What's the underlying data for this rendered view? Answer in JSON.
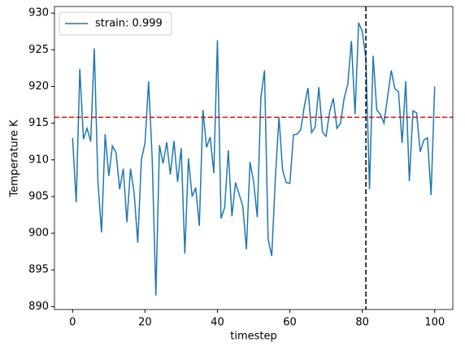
{
  "chart_data": {
    "type": "line",
    "xlabel": "timestep",
    "ylabel": "Temperature K",
    "x": [
      0,
      1,
      2,
      3,
      4,
      5,
      6,
      7,
      8,
      9,
      10,
      11,
      12,
      13,
      14,
      15,
      16,
      17,
      18,
      19,
      20,
      21,
      22,
      23,
      24,
      25,
      26,
      27,
      28,
      29,
      30,
      31,
      32,
      33,
      34,
      35,
      36,
      37,
      38,
      39,
      40,
      41,
      42,
      43,
      44,
      45,
      46,
      47,
      48,
      49,
      50,
      51,
      52,
      53,
      54,
      55,
      56,
      57,
      58,
      59,
      60,
      61,
      62,
      63,
      64,
      65,
      66,
      67,
      68,
      69,
      70,
      71,
      72,
      73,
      74,
      75,
      76,
      77,
      78,
      79,
      80,
      81,
      82,
      83,
      84,
      85,
      86,
      87,
      88,
      89,
      90,
      91,
      92,
      93,
      94,
      95,
      96,
      97,
      98,
      99,
      100
    ],
    "series": [
      {
        "name": "strain: 0.999",
        "color": "#1f77b4",
        "values": [
          913,
          904.2,
          922.4,
          912.8,
          914.3,
          912.5,
          925.2,
          907,
          900.1,
          913.5,
          907.8,
          911.9,
          911,
          906,
          908.8,
          901.5,
          908.8,
          905.5,
          898.7,
          910,
          912.3,
          920.7,
          910,
          891.5,
          912,
          909.5,
          912.4,
          908,
          912.6,
          907,
          911.6,
          897.2,
          910.2,
          905,
          906.2,
          901,
          916.8,
          911.7,
          913.1,
          908.2,
          926.3,
          902,
          903.5,
          911.3,
          902.3,
          906.9,
          905.3,
          903.7,
          897.8,
          909.7,
          907,
          902.2,
          918.5,
          922.2,
          899.2,
          896.9,
          907.5,
          915.8,
          908.6,
          906.9,
          906.8,
          913.4,
          913.5,
          914.1,
          917.3,
          919.8,
          913.7,
          914.5,
          919.9,
          913.8,
          913.2,
          916.6,
          918.4,
          914.3,
          915,
          918.4,
          920.3,
          926.2,
          916.2,
          928.7,
          927.5,
          923.8,
          906,
          924.2,
          916.8,
          916.2,
          915,
          918.6,
          922.2,
          919.7,
          919.3,
          912.3,
          920.7,
          907.1,
          916.7,
          916.4,
          911.1,
          912.7,
          913,
          905.2,
          920
        ]
      }
    ],
    "hlines": [
      {
        "value": 915.8,
        "color": "#ff0000"
      }
    ],
    "vlines": [
      {
        "value": 81,
        "color": "#000000"
      }
    ],
    "xlim": [
      -5,
      105
    ],
    "ylim": [
      889.6,
      930.9
    ],
    "xticks": [
      0,
      20,
      40,
      60,
      80,
      100
    ],
    "yticks": [
      890,
      895,
      900,
      905,
      910,
      915,
      920,
      925,
      930
    ],
    "legend": "upper left"
  }
}
